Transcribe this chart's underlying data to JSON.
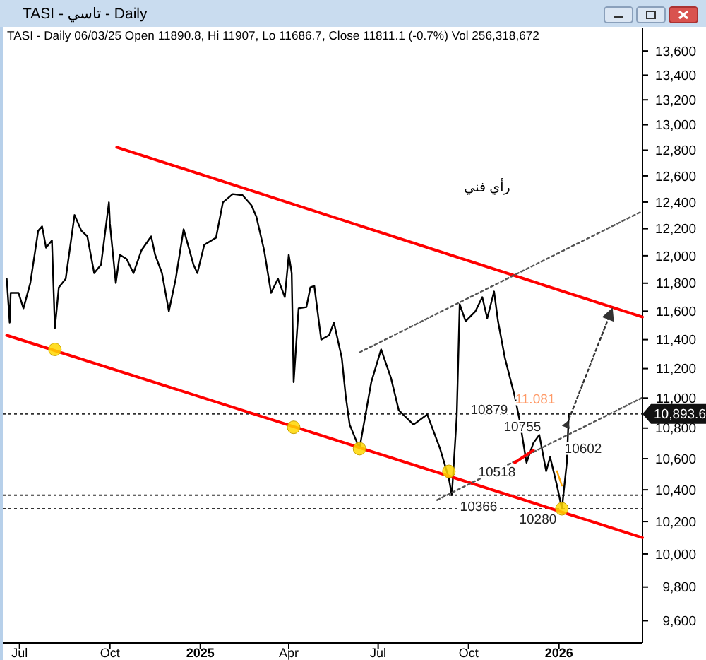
{
  "chart_data": {
    "type": "line",
    "title": "TASI - تاسي - Daily",
    "subtitle": "TASI - Daily 06/03/25 Open 11890.8, Hi 11907, Lo 11686.7, Close 11811.1 (-0.7%) Vol 256,318,672",
    "xlim": [
      "2024-06-14",
      "2026-03-27"
    ],
    "xticks": [
      {
        "value": "2024-07-01",
        "label": "Jul"
      },
      {
        "value": "2024-10-01",
        "label": "Oct"
      },
      {
        "value": "2025-01-01",
        "label": "2025"
      },
      {
        "value": "2025-04-01",
        "label": "Apr"
      },
      {
        "value": "2025-07-01",
        "label": "Jul"
      },
      {
        "value": "2025-10-01",
        "label": "Oct"
      },
      {
        "value": "2026-01-01",
        "label": "2026"
      }
    ],
    "ylim": [
      9470,
      13790
    ],
    "log": "y",
    "yticks": [
      {
        "value": 9600,
        "label": "9,600"
      },
      {
        "value": 9800,
        "label": "9,800"
      },
      {
        "value": 10000,
        "label": "10,000"
      },
      {
        "value": 10200,
        "label": "10,200"
      },
      {
        "value": 10400,
        "label": "10,400"
      },
      {
        "value": 10600,
        "label": "10,600"
      },
      {
        "value": 10800,
        "label": "10,800"
      },
      {
        "value": 11000,
        "label": "11,000"
      },
      {
        "value": 11200,
        "label": "11,200"
      },
      {
        "value": 11400,
        "label": "11,400"
      },
      {
        "value": 11600,
        "label": "11,600"
      },
      {
        "value": 11800,
        "label": "11,800"
      },
      {
        "value": 12000,
        "label": "12,000"
      },
      {
        "value": 12200,
        "label": "12,200"
      },
      {
        "value": 12400,
        "label": "12,400"
      },
      {
        "value": 12600,
        "label": "12,600"
      },
      {
        "value": 12800,
        "label": "12,800"
      },
      {
        "value": 13000,
        "label": "13,000"
      },
      {
        "value": 13200,
        "label": "13,200"
      },
      {
        "value": 13400,
        "label": "13,400"
      },
      {
        "value": 13600,
        "label": "13,600"
      }
    ],
    "series": [
      {
        "color": "#000000",
        "x": [
          "2024-06-18",
          "2024-06-21",
          "2024-06-22",
          "2024-06-30",
          "2024-07-05",
          "2024-07-12",
          "2024-07-20",
          "2024-07-24",
          "2024-07-28",
          "2024-08-03",
          "2024-08-06",
          "2024-08-10",
          "2024-08-17",
          "2024-08-26",
          "2024-09-02",
          "2024-09-08",
          "2024-09-15",
          "2024-09-22",
          "2024-09-30",
          "2024-10-01",
          "2024-10-07",
          "2024-10-11",
          "2024-10-18",
          "2024-10-25",
          "2024-11-02",
          "2024-11-12",
          "2024-11-16",
          "2024-11-23",
          "2024-11-30",
          "2024-12-07",
          "2024-12-15",
          "2024-12-25",
          "2024-12-29",
          "2025-01-05",
          "2025-01-17",
          "2025-01-24",
          "2025-02-03",
          "2025-02-13",
          "2025-02-22",
          "2025-02-27",
          "2025-03-07",
          "2025-03-14",
          "2025-03-21",
          "2025-03-28",
          "2025-04-01",
          "2025-04-04",
          "2025-04-06",
          "2025-04-11",
          "2025-04-19",
          "2025-04-23",
          "2025-04-27",
          "2025-05-04",
          "2025-05-12",
          "2025-05-17",
          "2025-05-25",
          "2025-05-29",
          "2025-06-02",
          "2025-06-12",
          "2025-06-24",
          "2025-07-04",
          "2025-07-14",
          "2025-07-22",
          "2025-08-06",
          "2025-08-20",
          "2025-09-02",
          "2025-09-11",
          "2025-09-14",
          "2025-09-19",
          "2025-09-22",
          "2025-09-28",
          "2025-10-08",
          "2025-10-15",
          "2025-10-20",
          "2025-10-27",
          "2025-10-31",
          "2025-11-07",
          "2025-11-17",
          "2025-11-22",
          "2025-11-29",
          "2025-12-06",
          "2025-12-12",
          "2025-12-19",
          "2025-12-23",
          "2025-12-30",
          "2026-01-04",
          "2026-01-09",
          "2026-01-11"
        ],
        "values": [
          11832,
          11519,
          11730,
          11730,
          11620,
          11801,
          12184,
          12217,
          12059,
          12112,
          11480,
          11770,
          11832,
          12302,
          12184,
          12143,
          11873,
          11935,
          12398,
          12238,
          11801,
          12007,
          11976,
          11873,
          12038,
          12143,
          12007,
          11873,
          11599,
          11832,
          12196,
          11935,
          11873,
          12080,
          12133,
          12398,
          12461,
          12452,
          12376,
          12290,
          12038,
          11730,
          11832,
          11700,
          12007,
          11873,
          11108,
          11620,
          11629,
          11770,
          11780,
          11400,
          11430,
          11519,
          11273,
          11012,
          10823,
          10665,
          11108,
          11332,
          11137,
          10918,
          10823,
          10890,
          10665,
          10473,
          10366,
          10879,
          11650,
          11529,
          11599,
          11700,
          11549,
          11740,
          11529,
          11273,
          11012,
          10852,
          10574,
          10702,
          10755,
          10519,
          10610,
          10427,
          10280,
          10574,
          10893.6
        ]
      },
      {
        "type": "line",
        "color": "#ff0000",
        "x": [
          "2024-10-08",
          "2026-03-27"
        ],
        "values": [
          12823,
          11559
        ]
      },
      {
        "type": "line",
        "color": "#ff0000",
        "x": [
          "2024-06-18",
          "2026-03-27"
        ],
        "values": [
          11430,
          10100
        ]
      },
      {
        "type": "line",
        "color": "#555555",
        "line_style": "dotted",
        "x": [
          "2025-06-12",
          "2026-03-27"
        ],
        "values": [
          11311,
          12332
        ]
      },
      {
        "type": "line",
        "color": "#555555",
        "line_style": "dotted",
        "x": [
          "2025-08-30",
          "2026-03-27"
        ],
        "values": [
          10335,
          11003
        ]
      },
      {
        "type": "line",
        "color": "#ff0000",
        "x": [
          "2025-11-17",
          "2025-12-06"
        ],
        "values": [
          10574,
          10655
        ]
      },
      {
        "type": "line",
        "color": "#ffa500",
        "x": [
          "2025-12-30",
          "2026-01-04"
        ],
        "values": [
          10519,
          10427
        ]
      },
      {
        "type": "line",
        "color": "#333333",
        "line_style": "dotted",
        "marker": "triangle",
        "x": [
          "2026-01-09",
          "2026-02-22"
        ],
        "values": [
          10823,
          11579
        ]
      },
      {
        "type": "scatter",
        "color": "#ffd700",
        "marker": "circle",
        "x": [
          "2024-08-06",
          "2025-04-06",
          "2025-06-12",
          "2025-09-11",
          "2026-01-04"
        ],
        "values": [
          11332,
          10805,
          10665,
          10518,
          10280
        ]
      }
    ],
    "ref_lines": [
      {
        "axis": "y",
        "value": 10893.6,
        "label": "10,893.6",
        "line_style": "dotted",
        "color": "#333333"
      },
      {
        "axis": "y",
        "value": 10366,
        "line_style": "dotted",
        "color": "#333333"
      },
      {
        "axis": "y",
        "value": 10280,
        "line_style": "dotted",
        "color": "#333333"
      }
    ],
    "annotations": [
      "رأي فني",
      "10602",
      "11.081",
      {
        "text": "10879",
        "x": "2025-09-19",
        "y": 10879
      },
      {
        "text": "10755",
        "x": "2025-12-12",
        "y": 10755
      },
      {
        "text": "10518",
        "x": "2025-09-11",
        "y": 10518
      },
      {
        "text": "10366",
        "x": "2025-09-14",
        "y": 10366
      },
      {
        "text": "10280",
        "x": "2026-01-04",
        "y": 10280
      }
    ]
  }
}
